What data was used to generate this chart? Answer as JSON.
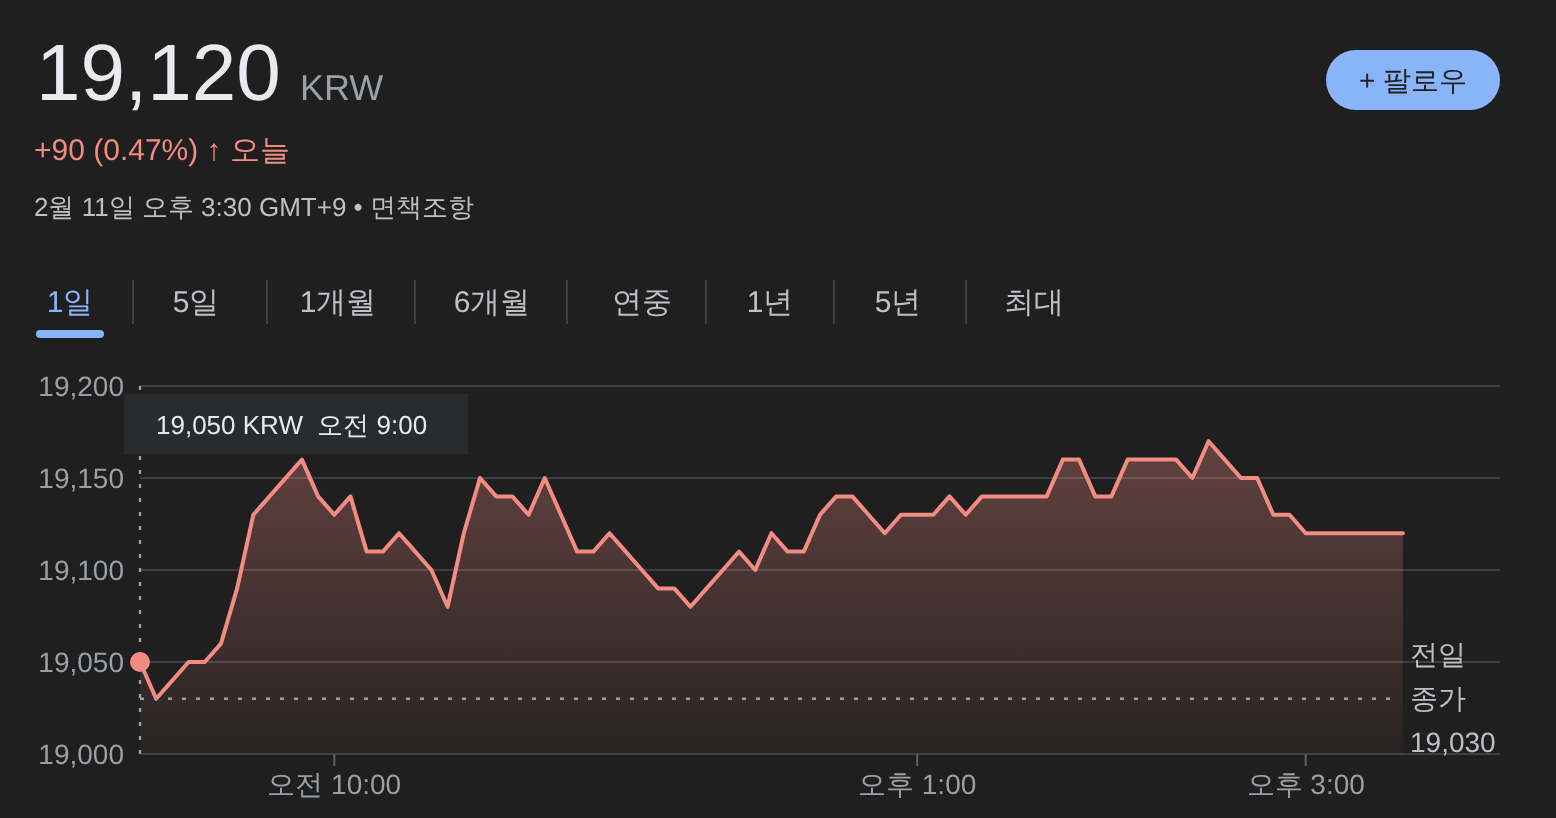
{
  "chart_data": {
    "type": "area",
    "title": "19,120",
    "annotations": [
      "KRW",
      "+90 (0.47%) ↑ 오늘",
      "2월 11일 오후 3:30 GMT+9 • 면책조항",
      "1일",
      "5일",
      "1개월",
      "6개월",
      "연중",
      "1년",
      "5년",
      "최대",
      "+ 팔로우",
      "19,050 KRW  오전 9:00"
    ],
    "categories": [
      null,
      null,
      null,
      null,
      null,
      null,
      null,
      null,
      null,
      null,
      null,
      null,
      "오전 10:00",
      null,
      null,
      null,
      null,
      null,
      null,
      null,
      null,
      null,
      null,
      null,
      null,
      null,
      null,
      null,
      null,
      null,
      null,
      null,
      null,
      null,
      null,
      null,
      null,
      null,
      null,
      null,
      null,
      null,
      null,
      null,
      null,
      null,
      null,
      null,
      "오후 1:00",
      null,
      null,
      null,
      null,
      null,
      null,
      null,
      null,
      null,
      null,
      null,
      null,
      null,
      null,
      null,
      null,
      null,
      null,
      null,
      null,
      null,
      null,
      null,
      "오후 3:00",
      null,
      null,
      null,
      null,
      null,
      null
    ],
    "series": [
      {
        "color": "#f28b82",
        "values": [
          19050,
          19030,
          19040,
          19050,
          19050,
          19060,
          19090,
          19130,
          19140,
          null,
          19160,
          19140,
          19130,
          19140,
          19110,
          19110,
          19120,
          19110,
          19100,
          19080,
          19120,
          19150,
          19140,
          19140,
          19130,
          19150,
          19130,
          19110,
          19110,
          19120,
          19110,
          19100,
          19090,
          19090,
          19080,
          19090,
          19100,
          19110,
          19100,
          19120,
          19110,
          19110,
          19130,
          19140,
          19140,
          19130,
          19120,
          19130,
          19130,
          19130,
          19140,
          19130,
          19140,
          19140,
          19140,
          19140,
          19140,
          19160,
          19160,
          19140,
          19140,
          19160,
          19160,
          19160,
          19160,
          19150,
          19170,
          19160,
          19150,
          19150,
          19130,
          19130,
          19120,
          19120,
          19120,
          19120,
          19120,
          19120,
          19120
        ]
      }
    ],
    "ylim": [
      19000,
      19200
    ],
    "yticks": [
      {
        "value": 19000,
        "label": "19,000"
      },
      {
        "value": 19050,
        "label": "19,050"
      },
      {
        "value": 19100,
        "label": "19,100"
      },
      {
        "value": 19150,
        "label": "19,150"
      },
      {
        "value": 19200,
        "label": "19,200"
      }
    ],
    "grid": "y",
    "ref_lines": [
      {
        "axis": "y",
        "value": 19030,
        "label": "전일 종가 19,030",
        "line_style": "dotted",
        "color": "#9aa0a6"
      }
    ]
  }
}
